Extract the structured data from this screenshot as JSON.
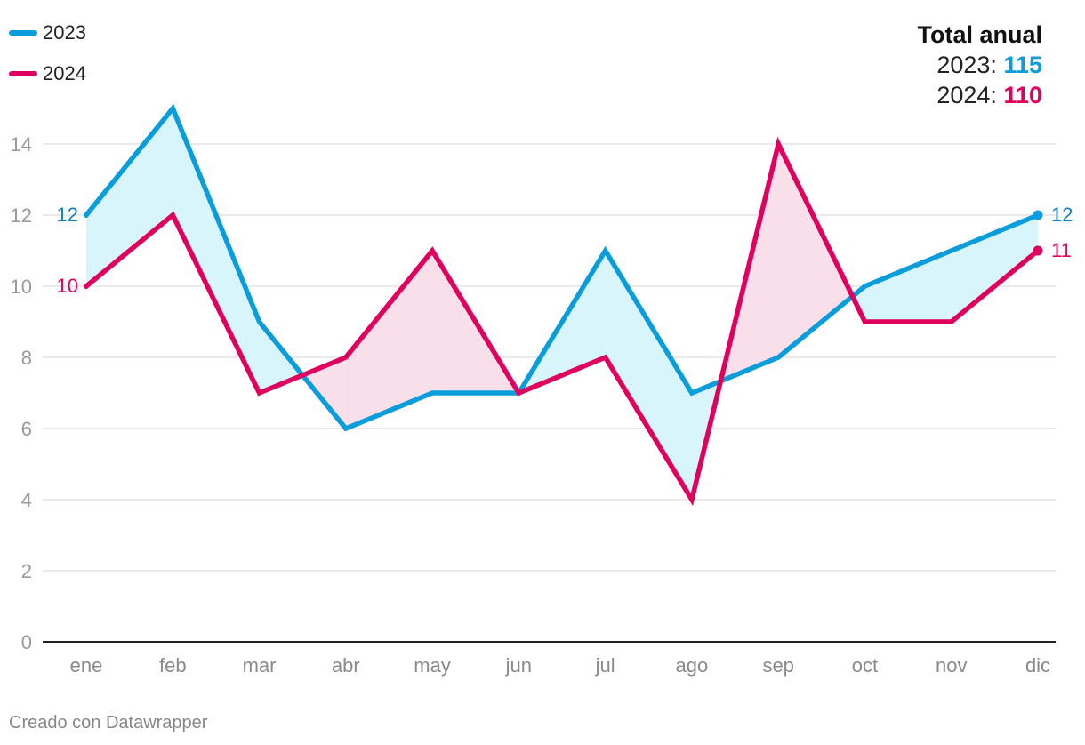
{
  "chart_data": {
    "type": "line",
    "categories": [
      "ene",
      "feb",
      "mar",
      "abr",
      "may",
      "jun",
      "jul",
      "ago",
      "sep",
      "oct",
      "nov",
      "dic"
    ],
    "series": [
      {
        "name": "2023",
        "color": "#0a9ddc",
        "label_color": "#1480c0",
        "fill_color": "#d7f5fb",
        "values": [
          12,
          15,
          9,
          6,
          7,
          7,
          11,
          7,
          8,
          10,
          11,
          12
        ]
      },
      {
        "name": "2024",
        "color": "#e0005e",
        "label_color": "#e0005e",
        "fill_color": "#f9dfe9",
        "values": [
          10,
          12,
          7,
          8,
          11,
          7,
          8,
          4,
          14,
          9,
          9,
          11
        ]
      }
    ],
    "yticks": [
      0,
      2,
      4,
      6,
      8,
      10,
      12,
      14
    ],
    "ylim": [
      0,
      15
    ],
    "grid": true,
    "legend_position": "top-left",
    "title": "",
    "xlabel": "",
    "ylabel": ""
  },
  "totals": {
    "title": "Total anual",
    "rows": [
      {
        "prefix": "2023: ",
        "value": "115",
        "color": "#0a9ddc"
      },
      {
        "prefix": "2024: ",
        "value": "110",
        "color": "#e0005e"
      }
    ]
  },
  "credit": "Creado con Datawrapper"
}
